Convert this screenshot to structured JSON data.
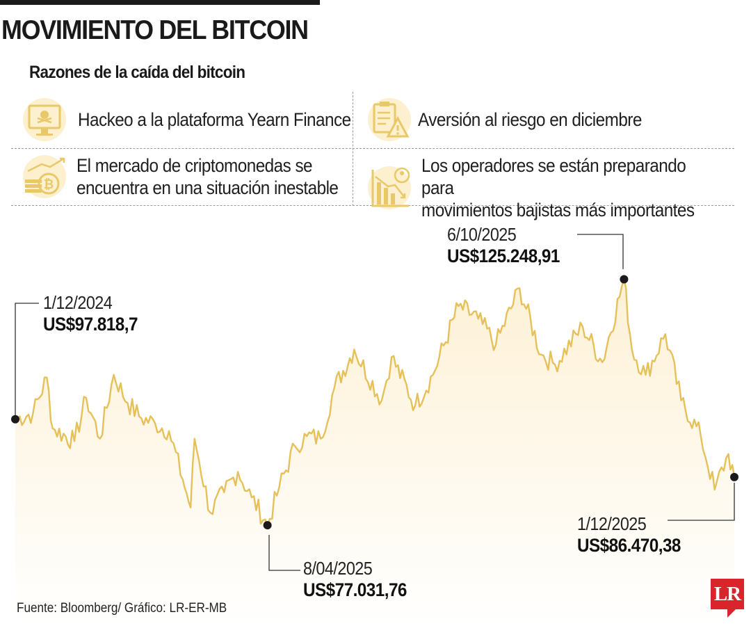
{
  "header": {
    "title": "MOVIMIENTO DEL BITCOIN",
    "subtitle": "Razones de la caída del bitcoin"
  },
  "reasons": [
    {
      "icon": "hacked-monitor-icon",
      "text": "Hackeo a la plataforma Yearn Finance"
    },
    {
      "icon": "risk-clipboard-icon",
      "text": "Aversión al riesgo en diciembre"
    },
    {
      "icon": "crypto-coins-icon",
      "text": "El mercado de criptomonedas se\nencuentra en una situación inestable"
    },
    {
      "icon": "bearish-chart-icon",
      "text": "Los operadores se están preparando para\nmovimientos bajistas más importantes"
    }
  ],
  "colors": {
    "line": "#e6c058",
    "area_top": "#fdf1d6",
    "area_bottom": "#ffffff",
    "icon": "#efd48a",
    "logo": "#d9242b"
  },
  "chart_data": {
    "type": "area",
    "title": "",
    "xlabel": "",
    "ylabel": "",
    "unit": "US$",
    "x_range": [
      "2024-12-01",
      "2025-12-01"
    ],
    "ylim": [
      60000,
      135000
    ],
    "grid": false,
    "series": [
      {
        "values": [
          [
            "2024-12-01",
            97819
          ],
          [
            "2024-12-10",
            99000
          ],
          [
            "2024-12-17",
            106000
          ],
          [
            "2024-12-20",
            96000
          ],
          [
            "2024-12-31",
            93500
          ],
          [
            "2025-01-06",
            102000
          ],
          [
            "2025-01-13",
            94000
          ],
          [
            "2025-01-20",
            106500
          ],
          [
            "2025-01-27",
            101000
          ],
          [
            "2025-02-03",
            98000
          ],
          [
            "2025-02-10",
            97000
          ],
          [
            "2025-02-17",
            95500
          ],
          [
            "2025-02-24",
            86000
          ],
          [
            "2025-02-28",
            80500
          ],
          [
            "2025-03-02",
            94000
          ],
          [
            "2025-03-10",
            79500
          ],
          [
            "2025-03-17",
            83500
          ],
          [
            "2025-03-24",
            87500
          ],
          [
            "2025-03-31",
            82500
          ],
          [
            "2025-04-08",
            77032
          ],
          [
            "2025-04-14",
            84500
          ],
          [
            "2025-04-22",
            92500
          ],
          [
            "2025-04-28",
            94500
          ],
          [
            "2025-05-05",
            94000
          ],
          [
            "2025-05-12",
            104000
          ],
          [
            "2025-05-22",
            111500
          ],
          [
            "2025-06-05",
            101500
          ],
          [
            "2025-06-10",
            110000
          ],
          [
            "2025-06-22",
            100500
          ],
          [
            "2025-07-01",
            106500
          ],
          [
            "2025-07-14",
            120000
          ],
          [
            "2025-07-24",
            117500
          ],
          [
            "2025-08-02",
            112500
          ],
          [
            "2025-08-14",
            123500
          ],
          [
            "2025-08-25",
            110500
          ],
          [
            "2025-09-01",
            108500
          ],
          [
            "2025-09-15",
            116000
          ],
          [
            "2025-09-25",
            109000
          ],
          [
            "2025-10-06",
            125249
          ],
          [
            "2025-10-10",
            111500
          ],
          [
            "2025-10-17",
            106500
          ],
          [
            "2025-10-27",
            114500
          ],
          [
            "2025-11-04",
            101500
          ],
          [
            "2025-11-14",
            94500
          ],
          [
            "2025-11-21",
            84000
          ],
          [
            "2025-11-28",
            91000
          ],
          [
            "2025-12-01",
            86470
          ]
        ]
      }
    ],
    "annotations": [
      {
        "date": "1/12/2024",
        "value": "US$97.818,7",
        "x": "2024-12-01",
        "y": 97819
      },
      {
        "date": "8/04/2025",
        "value": "US$77.031,76",
        "x": "2025-04-08",
        "y": 77032
      },
      {
        "date": "6/10/2025",
        "value": "US$125.248,91",
        "x": "2025-10-06",
        "y": 125249
      },
      {
        "date": "1/12/2025",
        "value": "US$86.470,38",
        "x": "2025-12-01",
        "y": 86470
      }
    ]
  },
  "footer": {
    "source": "Fuente: Bloomberg/ Gráfico: LR-ER-MB",
    "logo_text": "LR"
  }
}
